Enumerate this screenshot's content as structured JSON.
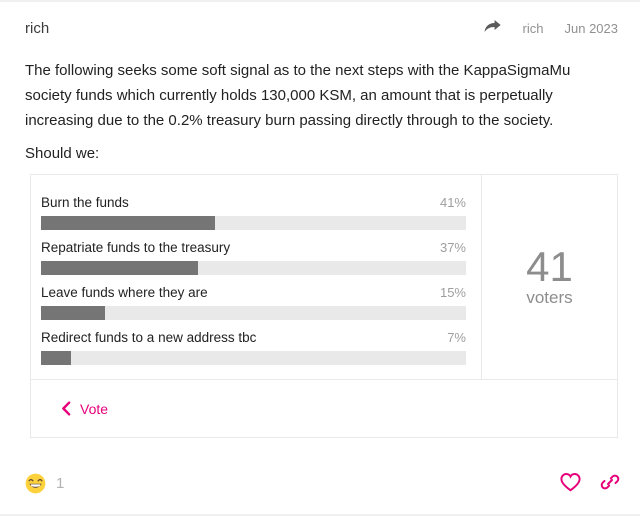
{
  "header": {
    "author": "rich",
    "share_icon": "share-arrow-icon",
    "last_editor": "rich",
    "date": "Jun 2023"
  },
  "post": {
    "paragraph": "The following seeks some soft signal as to the next steps with the KappaSigmaMu society funds which currently holds 130,000 KSM, an amount that is perpetually increasing due to the 0.2% treasury burn passing directly through to the society.",
    "question": "Should we:"
  },
  "poll": {
    "options": [
      {
        "label": "Burn the funds",
        "percent": 41,
        "percent_label": "41%"
      },
      {
        "label": "Repatriate funds to the treasury",
        "percent": 37,
        "percent_label": "37%"
      },
      {
        "label": "Leave funds where they are",
        "percent": 15,
        "percent_label": "15%"
      },
      {
        "label": "Redirect funds to a new address tbc",
        "percent": 7,
        "percent_label": "7%"
      }
    ],
    "voters_count": "41",
    "voters_label": "voters",
    "vote_button": "Vote",
    "vote_icon": "chevron-left-icon"
  },
  "reactions": {
    "items": [
      {
        "emoji": "laughing-emoji",
        "count": "1"
      }
    ]
  },
  "action_icons": {
    "like": "heart-outline-icon",
    "link": "link-icon"
  },
  "colors": {
    "accent": "#e6007a",
    "bar_fill": "#757575",
    "bar_bg": "#e9e9e9",
    "muted_text": "#919191",
    "body_text": "#222222",
    "border": "#e9e9e9"
  }
}
